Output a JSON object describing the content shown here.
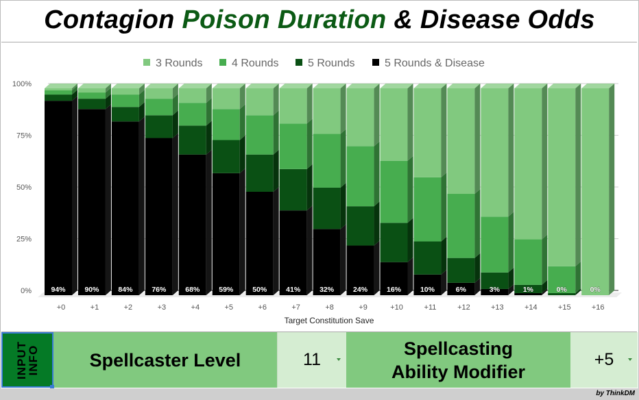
{
  "title": {
    "part1": "Contagion ",
    "part2": "Poison Duration",
    "part3": " & Disease Odds"
  },
  "chart_data": {
    "type": "bar",
    "stacked": true,
    "three_d": true,
    "xlabel": "Target Constitution Save",
    "ylabel": "",
    "ylim": [
      0,
      100
    ],
    "yticks": [
      "0%",
      "25%",
      "50%",
      "75%",
      "100%"
    ],
    "legend_position": "top",
    "categories": [
      "+0",
      "+1",
      "+2",
      "+3",
      "+4",
      "+5",
      "+6",
      "+7",
      "+8",
      "+9",
      "+10",
      "+11",
      "+12",
      "+13",
      "+14",
      "+15",
      "+16"
    ],
    "series": [
      {
        "name": "5 Rounds & Disease",
        "color": "#000000",
        "side": "#151515",
        "values": [
          94,
          90,
          84,
          76,
          68,
          59,
          50,
          41,
          32,
          24,
          16,
          10,
          6,
          3,
          1,
          0,
          0
        ]
      },
      {
        "name": "5 Rounds",
        "color": "#0a5014",
        "side": "#06330c",
        "values": [
          3,
          5,
          7,
          11,
          14,
          16,
          18,
          20,
          20,
          19,
          19,
          16,
          12,
          8,
          4,
          1,
          0
        ]
      },
      {
        "name": "4 Rounds",
        "color": "#47ad4f",
        "side": "#2f7334",
        "values": [
          2,
          3,
          6,
          8,
          11,
          15,
          19,
          22,
          26,
          29,
          30,
          31,
          31,
          27,
          22,
          13,
          0
        ]
      },
      {
        "name": "3 Rounds",
        "color": "#81c97f",
        "side": "#548a55",
        "values": [
          1,
          2,
          3,
          5,
          7,
          10,
          13,
          17,
          22,
          28,
          35,
          43,
          51,
          62,
          73,
          86,
          100
        ]
      }
    ],
    "data_labels": [
      "94%",
      "90%",
      "84%",
      "76%",
      "68%",
      "59%",
      "50%",
      "41%",
      "32%",
      "24%",
      "16%",
      "10%",
      "6%",
      "3%",
      "1%",
      "0%",
      "0%"
    ],
    "legend_order": [
      "3 Rounds",
      "4 Rounds",
      "5 Rounds",
      "5 Rounds & Disease"
    ]
  },
  "inputs": {
    "section_label": "INPUT\nINFO",
    "level_label": "Spellcaster Level",
    "level_value": "11",
    "modifier_label_line1": "Spellcasting",
    "modifier_label_line2": "Ability Modifier",
    "modifier_value": "+5"
  },
  "footer": {
    "credit": "by ThinkDM"
  }
}
